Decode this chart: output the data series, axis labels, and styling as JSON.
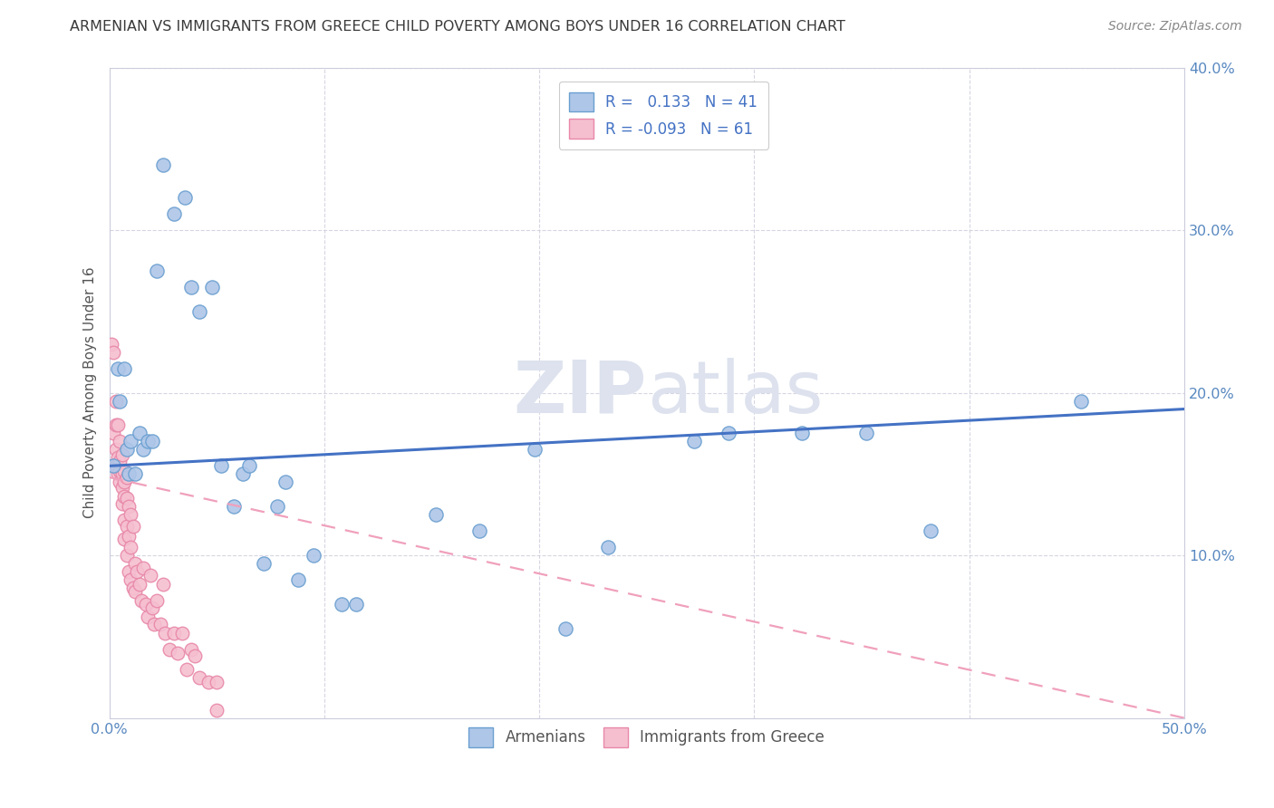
{
  "title": "ARMENIAN VS IMMIGRANTS FROM GREECE CHILD POVERTY AMONG BOYS UNDER 16 CORRELATION CHART",
  "source": "Source: ZipAtlas.com",
  "ylabel": "Child Poverty Among Boys Under 16",
  "xlim": [
    0.0,
    0.5
  ],
  "ylim": [
    0.0,
    0.4
  ],
  "xticks": [
    0.0,
    0.1,
    0.2,
    0.3,
    0.4,
    0.5
  ],
  "yticks": [
    0.0,
    0.1,
    0.2,
    0.3,
    0.4
  ],
  "xtick_labels": [
    "0.0%",
    "",
    "",
    "",
    "",
    "50.0%"
  ],
  "ytick_labels_right": [
    "",
    "10.0%",
    "20.0%",
    "30.0%",
    "40.0%"
  ],
  "armenian_color": "#aec6e8",
  "greece_color": "#f5bfd0",
  "armenian_edge_color": "#6a9fd0",
  "greece_edge_color": "#e888a8",
  "armenian_line_color": "#4472c4",
  "greece_line_color": "#f0a0bc",
  "background_color": "#ffffff",
  "grid_color": "#ccccdd",
  "watermark_color": "#dde2ee",
  "title_color": "#3a3a3a",
  "axis_tick_color": "#5888c0",
  "armenian_points": [
    [
      0.002,
      0.155
    ],
    [
      0.004,
      0.215
    ],
    [
      0.005,
      0.195
    ],
    [
      0.007,
      0.215
    ],
    [
      0.008,
      0.165
    ],
    [
      0.009,
      0.15
    ],
    [
      0.01,
      0.17
    ],
    [
      0.012,
      0.15
    ],
    [
      0.014,
      0.175
    ],
    [
      0.016,
      0.165
    ],
    [
      0.018,
      0.17
    ],
    [
      0.02,
      0.17
    ],
    [
      0.022,
      0.275
    ],
    [
      0.025,
      0.34
    ],
    [
      0.03,
      0.31
    ],
    [
      0.035,
      0.32
    ],
    [
      0.038,
      0.265
    ],
    [
      0.042,
      0.25
    ],
    [
      0.048,
      0.265
    ],
    [
      0.052,
      0.155
    ],
    [
      0.058,
      0.13
    ],
    [
      0.062,
      0.15
    ],
    [
      0.065,
      0.155
    ],
    [
      0.072,
      0.095
    ],
    [
      0.078,
      0.13
    ],
    [
      0.082,
      0.145
    ],
    [
      0.088,
      0.085
    ],
    [
      0.095,
      0.1
    ],
    [
      0.108,
      0.07
    ],
    [
      0.115,
      0.07
    ],
    [
      0.152,
      0.125
    ],
    [
      0.172,
      0.115
    ],
    [
      0.198,
      0.165
    ],
    [
      0.212,
      0.055
    ],
    [
      0.232,
      0.105
    ],
    [
      0.272,
      0.17
    ],
    [
      0.288,
      0.175
    ],
    [
      0.322,
      0.175
    ],
    [
      0.352,
      0.175
    ],
    [
      0.382,
      0.115
    ],
    [
      0.452,
      0.195
    ]
  ],
  "greece_points": [
    [
      0.001,
      0.23
    ],
    [
      0.002,
      0.225
    ],
    [
      0.002,
      0.175
    ],
    [
      0.003,
      0.195
    ],
    [
      0.003,
      0.18
    ],
    [
      0.003,
      0.165
    ],
    [
      0.003,
      0.155
    ],
    [
      0.004,
      0.18
    ],
    [
      0.004,
      0.16
    ],
    [
      0.004,
      0.15
    ],
    [
      0.005,
      0.17
    ],
    [
      0.005,
      0.158
    ],
    [
      0.005,
      0.152
    ],
    [
      0.005,
      0.145
    ],
    [
      0.006,
      0.162
    ],
    [
      0.006,
      0.15
    ],
    [
      0.006,
      0.142
    ],
    [
      0.006,
      0.132
    ],
    [
      0.007,
      0.152
    ],
    [
      0.007,
      0.145
    ],
    [
      0.007,
      0.136
    ],
    [
      0.007,
      0.122
    ],
    [
      0.007,
      0.11
    ],
    [
      0.008,
      0.148
    ],
    [
      0.008,
      0.135
    ],
    [
      0.008,
      0.118
    ],
    [
      0.008,
      0.1
    ],
    [
      0.009,
      0.13
    ],
    [
      0.009,
      0.112
    ],
    [
      0.009,
      0.09
    ],
    [
      0.01,
      0.125
    ],
    [
      0.01,
      0.105
    ],
    [
      0.01,
      0.085
    ],
    [
      0.011,
      0.118
    ],
    [
      0.011,
      0.08
    ],
    [
      0.012,
      0.095
    ],
    [
      0.012,
      0.078
    ],
    [
      0.013,
      0.09
    ],
    [
      0.014,
      0.082
    ],
    [
      0.015,
      0.072
    ],
    [
      0.016,
      0.092
    ],
    [
      0.017,
      0.07
    ],
    [
      0.018,
      0.062
    ],
    [
      0.019,
      0.088
    ],
    [
      0.02,
      0.068
    ],
    [
      0.021,
      0.058
    ],
    [
      0.022,
      0.072
    ],
    [
      0.024,
      0.058
    ],
    [
      0.025,
      0.082
    ],
    [
      0.026,
      0.052
    ],
    [
      0.028,
      0.042
    ],
    [
      0.03,
      0.052
    ],
    [
      0.032,
      0.04
    ],
    [
      0.034,
      0.052
    ],
    [
      0.036,
      0.03
    ],
    [
      0.038,
      0.042
    ],
    [
      0.04,
      0.038
    ],
    [
      0.042,
      0.025
    ],
    [
      0.046,
      0.022
    ],
    [
      0.05,
      0.022
    ],
    [
      0.05,
      0.005
    ]
  ],
  "arm_line_x": [
    0.0,
    0.5
  ],
  "arm_line_y": [
    0.155,
    0.19
  ],
  "greece_line_x": [
    0.0,
    0.5
  ],
  "greece_line_y": [
    0.148,
    0.0
  ]
}
